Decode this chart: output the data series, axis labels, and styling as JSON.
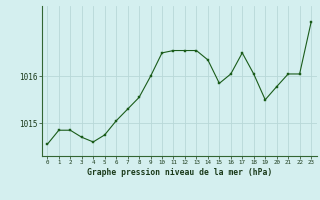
{
  "hours": [
    0,
    1,
    2,
    3,
    4,
    5,
    6,
    7,
    8,
    9,
    10,
    11,
    12,
    13,
    14,
    15,
    16,
    17,
    18,
    19,
    20,
    21,
    22,
    23
  ],
  "pressure": [
    1014.55,
    1014.85,
    1014.85,
    1014.7,
    1014.6,
    1014.75,
    1015.05,
    1015.3,
    1015.55,
    1016.0,
    1016.5,
    1016.55,
    1016.55,
    1016.55,
    1016.35,
    1015.85,
    1016.05,
    1016.5,
    1016.05,
    1015.5,
    1015.78,
    1016.05,
    1016.05,
    1017.15
  ],
  "line_color": "#1a5c1a",
  "marker_color": "#1a5c1a",
  "bg_color": "#d4efef",
  "grid_color": "#b8d8d8",
  "axis_label_color": "#1a3a1a",
  "title_text": "Graphe pression niveau de la mer (hPa)",
  "ytick_values": [
    1015,
    1016
  ],
  "ylim": [
    1014.3,
    1017.5
  ],
  "xlim": [
    -0.5,
    23.5
  ],
  "spine_color": "#336633"
}
